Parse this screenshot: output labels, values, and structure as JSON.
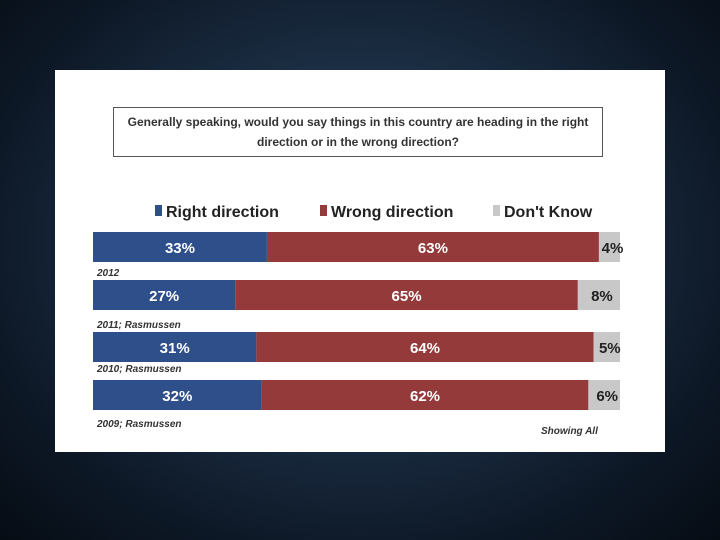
{
  "colors": {
    "right": "#2e4f8a",
    "wrong": "#943a3a",
    "dontknow": "#c8c8c8",
    "label_light": "#ffffff",
    "label_dark": "#222222"
  },
  "chart_data": {
    "type": "bar",
    "orientation": "horizontal",
    "stacked": true,
    "title": "Generally speaking, would you say things in this country are heading in the right direction or in the wrong direction?",
    "categories": [
      "2012",
      "2011; Rasmussen",
      "2010; Rasmussen",
      "2009; Rasmussen"
    ],
    "series": [
      {
        "name": "Right direction",
        "values": [
          33,
          27,
          31,
          32
        ]
      },
      {
        "name": "Wrong direction",
        "values": [
          63,
          65,
          64,
          62
        ]
      },
      {
        "name": "Don't Know",
        "values": [
          4,
          8,
          5,
          6
        ]
      }
    ],
    "data_labels": [
      [
        "33%",
        "63%",
        "4%"
      ],
      [
        "27%",
        "65%",
        "8%"
      ],
      [
        "31%",
        "64%",
        "5%"
      ],
      [
        "32%",
        "62%",
        "6%"
      ]
    ],
    "legend_position": "top",
    "footnote": "Showing All",
    "xlim": [
      0,
      100
    ],
    "grid": false
  }
}
